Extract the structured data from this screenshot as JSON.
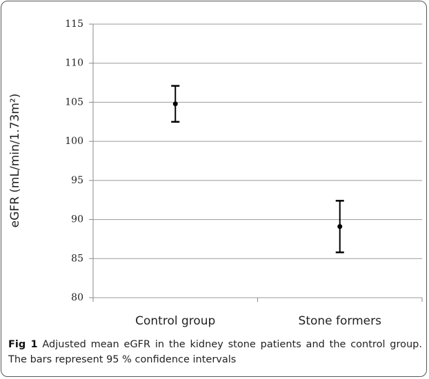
{
  "chart_data": {
    "type": "errorbar",
    "y_label": "eGFR (mL/min/1.73m²)",
    "categories": [
      "Control group",
      "Stone formers"
    ],
    "values": [
      104.8,
      89.1
    ],
    "errors": [
      2.3,
      3.3
    ],
    "color": "#000000",
    "ylim": [
      80,
      115
    ],
    "yticks": [
      80,
      85,
      90,
      95,
      100,
      105,
      110,
      115
    ],
    "grid": true,
    "caption_label": "Fig 1",
    "caption": "Adjusted mean eGFR in the kidney stone patients and the control group. The bars represent 95 % confidence intervals"
  }
}
